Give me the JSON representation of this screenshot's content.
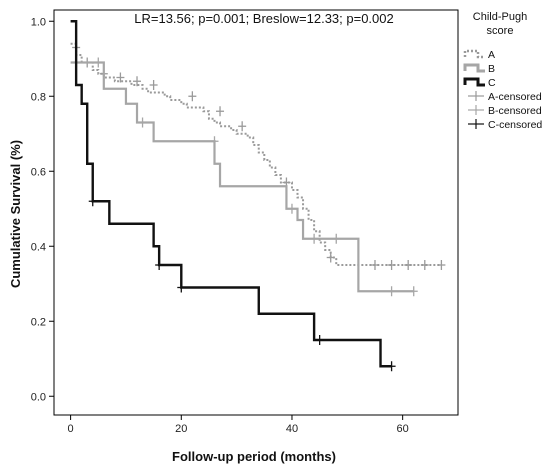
{
  "chart_data": {
    "type": "line",
    "title": "",
    "annotation": "LR=13.56; p=0.001; Breslow=12.33; p=0.002",
    "xlabel": "Follow-up period (months)",
    "ylabel": "Cumulative Survival (%)",
    "xlim": [
      -3,
      70
    ],
    "ylim": [
      -0.05,
      1.03
    ],
    "xticks": [
      0,
      20,
      40,
      60
    ],
    "yticks": [
      0.0,
      0.2,
      0.4,
      0.6,
      0.8,
      1.0
    ],
    "ytick_labels": [
      "0.0",
      "0.2",
      "0.4",
      "0.6",
      "0.8",
      "1.0"
    ],
    "legend": {
      "title": "Child-Pugh score",
      "position": "right-outside",
      "entries": [
        "A",
        "B",
        "C",
        "A-censored",
        "B-censored",
        "C-censored"
      ]
    },
    "series": [
      {
        "name": "A",
        "color": "#9a9a9a",
        "style": "dotted",
        "steps": [
          [
            0,
            0.94
          ],
          [
            1,
            0.91
          ],
          [
            2,
            0.89
          ],
          [
            4,
            0.87
          ],
          [
            5,
            0.86
          ],
          [
            6,
            0.85
          ],
          [
            8,
            0.84
          ],
          [
            11,
            0.83
          ],
          [
            13,
            0.82
          ],
          [
            14,
            0.81
          ],
          [
            17,
            0.8
          ],
          [
            18,
            0.79
          ],
          [
            20,
            0.78
          ],
          [
            21,
            0.77
          ],
          [
            24,
            0.76
          ],
          [
            25,
            0.74
          ],
          [
            26,
            0.73
          ],
          [
            27,
            0.72
          ],
          [
            29,
            0.71
          ],
          [
            30,
            0.7
          ],
          [
            32,
            0.69
          ],
          [
            33,
            0.67
          ],
          [
            34,
            0.65
          ],
          [
            35,
            0.63
          ],
          [
            36,
            0.61
          ],
          [
            37,
            0.59
          ],
          [
            38,
            0.57
          ],
          [
            40,
            0.55
          ],
          [
            41,
            0.53
          ],
          [
            42,
            0.5
          ],
          [
            43,
            0.47
          ],
          [
            44,
            0.44
          ],
          [
            45,
            0.41
          ],
          [
            46,
            0.39
          ],
          [
            47,
            0.37
          ],
          [
            48,
            0.35
          ],
          [
            67,
            0.35
          ]
        ],
        "censored": [
          [
            1,
            0.93
          ],
          [
            3,
            0.89
          ],
          [
            6,
            0.86
          ],
          [
            9,
            0.85
          ],
          [
            12,
            0.84
          ],
          [
            15,
            0.83
          ],
          [
            22,
            0.8
          ],
          [
            27,
            0.76
          ],
          [
            31,
            0.72
          ],
          [
            39,
            0.57
          ],
          [
            47,
            0.37
          ],
          [
            55,
            0.35
          ],
          [
            58,
            0.35
          ],
          [
            61,
            0.35
          ],
          [
            64,
            0.35
          ],
          [
            67,
            0.35
          ]
        ]
      },
      {
        "name": "B",
        "color": "#a6a6a6",
        "style": "solid",
        "steps": [
          [
            0,
            0.89
          ],
          [
            6,
            0.82
          ],
          [
            10,
            0.78
          ],
          [
            12,
            0.73
          ],
          [
            15,
            0.68
          ],
          [
            26,
            0.62
          ],
          [
            27,
            0.56
          ],
          [
            39,
            0.5
          ],
          [
            41,
            0.47
          ],
          [
            42,
            0.42
          ],
          [
            52,
            0.28
          ],
          [
            62,
            0.28
          ]
        ],
        "censored": [
          [
            1,
            0.89
          ],
          [
            3,
            0.89
          ],
          [
            5,
            0.89
          ],
          [
            13,
            0.73
          ],
          [
            26,
            0.68
          ],
          [
            40,
            0.5
          ],
          [
            44,
            0.42
          ],
          [
            48,
            0.42
          ],
          [
            58,
            0.28
          ],
          [
            62,
            0.28
          ]
        ]
      },
      {
        "name": "C",
        "color": "#111111",
        "style": "solid",
        "steps": [
          [
            0,
            1.0
          ],
          [
            1,
            0.83
          ],
          [
            2,
            0.78
          ],
          [
            3,
            0.62
          ],
          [
            4,
            0.52
          ],
          [
            7,
            0.46
          ],
          [
            15,
            0.4
          ],
          [
            16,
            0.35
          ],
          [
            20,
            0.29
          ],
          [
            34,
            0.22
          ],
          [
            44,
            0.15
          ],
          [
            56,
            0.08
          ],
          [
            58,
            0.08
          ]
        ],
        "censored": [
          [
            4,
            0.52
          ],
          [
            16,
            0.35
          ],
          [
            20,
            0.29
          ],
          [
            45,
            0.15
          ],
          [
            58,
            0.08
          ]
        ]
      }
    ]
  }
}
